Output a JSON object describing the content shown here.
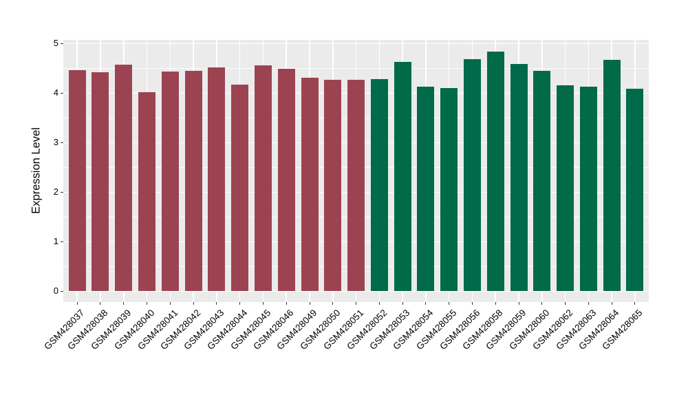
{
  "figure": {
    "panel_bg": "#EBEBEB",
    "grid_color": "#FFFFFF",
    "tick_color": "#333333",
    "text_color": "#000000"
  },
  "chart_data": {
    "type": "bar",
    "title": "",
    "xlabel": "",
    "ylabel": "Expression Level",
    "ylim": [
      0,
      5
    ],
    "yticks": [
      "0",
      "1",
      "2",
      "3",
      "4",
      "5"
    ],
    "grid": "white major and minor horizontal gridlines plus vertical category gridlines on grey panel",
    "legend_position": "none",
    "categories": [
      "GSM428037",
      "GSM428038",
      "GSM428039",
      "GSM428040",
      "GSM428041",
      "GSM428042",
      "GSM428043",
      "GSM428044",
      "GSM428045",
      "GSM428046",
      "GSM428049",
      "GSM428050",
      "GSM428051",
      "GSM428052",
      "GSM428053",
      "GSM428054",
      "GSM428055",
      "GSM428056",
      "GSM428058",
      "GSM428059",
      "GSM428060",
      "GSM428062",
      "GSM428063",
      "GSM428064",
      "GSM428065"
    ],
    "values": [
      4.46,
      4.41,
      4.57,
      4.01,
      4.43,
      4.45,
      4.51,
      4.17,
      4.55,
      4.48,
      4.31,
      4.26,
      4.26,
      4.28,
      4.62,
      4.13,
      4.1,
      4.68,
      4.83,
      4.59,
      4.45,
      4.15,
      4.12,
      4.67,
      4.08
    ],
    "groups": [
      "group1",
      "group1",
      "group1",
      "group1",
      "group1",
      "group1",
      "group1",
      "group1",
      "group1",
      "group1",
      "group1",
      "group1",
      "group1",
      "group2",
      "group2",
      "group2",
      "group2",
      "group2",
      "group2",
      "group2",
      "group2",
      "group2",
      "group2",
      "group2",
      "group2"
    ],
    "group_colors": {
      "group1": "#9C4352",
      "group2": "#016A49"
    }
  }
}
